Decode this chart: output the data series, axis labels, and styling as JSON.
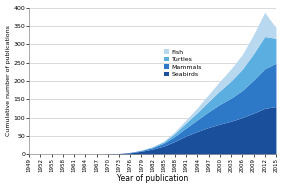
{
  "years": [
    1949,
    1952,
    1955,
    1958,
    1961,
    1964,
    1967,
    1970,
    1973,
    1976,
    1979,
    1982,
    1985,
    1988,
    1991,
    1994,
    1997,
    2000,
    2003,
    2006,
    2009,
    2012,
    2015
  ],
  "seabirds": [
    0,
    0,
    0,
    0,
    0,
    0,
    0,
    1,
    2,
    4,
    8,
    14,
    22,
    35,
    50,
    62,
    73,
    82,
    90,
    100,
    112,
    125,
    130
  ],
  "mammals": [
    0,
    0,
    0,
    0,
    0,
    0,
    0,
    0,
    0,
    1,
    2,
    4,
    8,
    14,
    22,
    32,
    43,
    54,
    63,
    74,
    90,
    108,
    118
  ],
  "turtles": [
    0,
    0,
    0,
    0,
    0,
    0,
    0,
    0,
    0,
    0,
    1,
    2,
    4,
    8,
    14,
    20,
    28,
    37,
    47,
    58,
    72,
    88,
    68
  ],
  "fish": [
    0,
    0,
    0,
    0,
    0,
    0,
    0,
    0,
    0,
    0,
    0,
    1,
    2,
    5,
    8,
    13,
    19,
    26,
    33,
    40,
    52,
    66,
    29
  ],
  "colors": {
    "seabirds": "#1a4f9c",
    "mammals": "#2e78c8",
    "turtles": "#5baee0",
    "fish": "#b8d8f0"
  },
  "xlabel": "Year of publication",
  "ylabel": "Cumulative number of publications",
  "ylim": [
    0,
    400
  ],
  "yticks": [
    0,
    50,
    100,
    150,
    200,
    250,
    300,
    350,
    400
  ],
  "xtick_labels": [
    "1949",
    "1952",
    "1955",
    "1958",
    "1961",
    "1964",
    "1967",
    "1970",
    "1973",
    "1976",
    "1979",
    "1982",
    "1985",
    "1988",
    "1991",
    "1994",
    "1997",
    "2000",
    "2003",
    "2006",
    "2009",
    "2012",
    "2015"
  ]
}
